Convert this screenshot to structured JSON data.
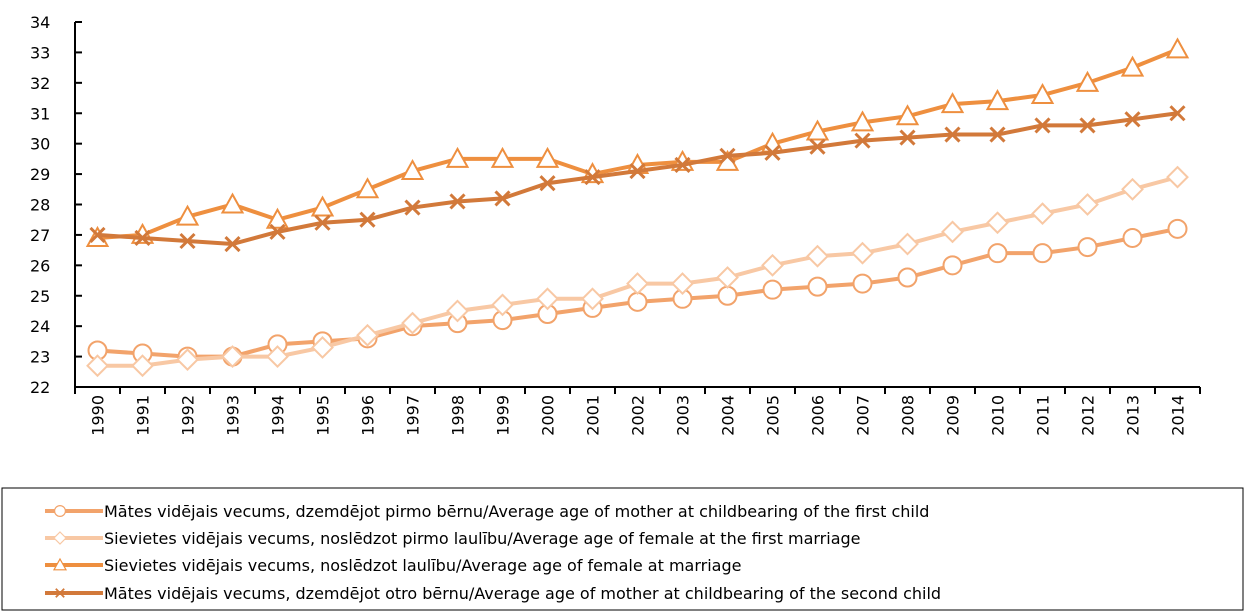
{
  "chart_data": {
    "type": "line",
    "categories": [
      "1990",
      "1991",
      "1992",
      "1993",
      "1994",
      "1995",
      "1996",
      "1997",
      "1998",
      "1999",
      "2000",
      "2001",
      "2002",
      "2003",
      "2004",
      "2005",
      "2006",
      "2007",
      "2008",
      "2009",
      "2010",
      "2011",
      "2012",
      "2013",
      "2014"
    ],
    "ylim": [
      22,
      34
    ],
    "yticks": [
      22,
      23,
      24,
      25,
      26,
      27,
      28,
      29,
      30,
      31,
      32,
      33,
      34
    ],
    "series": [
      {
        "name": "Mātes vidējais vecums, dzemdējot pirmo bērnu/Average age of mother at childbearing of the first child",
        "color": "#f2a36b",
        "marker": "circle",
        "values": [
          23.2,
          23.1,
          23.0,
          23.0,
          23.4,
          23.5,
          23.6,
          24.0,
          24.1,
          24.2,
          24.4,
          24.6,
          24.8,
          24.9,
          25.0,
          25.2,
          25.3,
          25.4,
          25.6,
          26.0,
          26.4,
          26.4,
          26.6,
          26.9,
          27.2
        ]
      },
      {
        "name": "Sievietes vidējais vecums, noslēdzot pirmo laulību/Average age of female at the first marriage",
        "color": "#f8c8a4",
        "marker": "diamond",
        "values": [
          22.7,
          22.7,
          22.9,
          23.0,
          23.0,
          23.3,
          23.7,
          24.1,
          24.5,
          24.7,
          24.9,
          24.9,
          25.4,
          25.4,
          25.6,
          26.0,
          26.3,
          26.4,
          26.7,
          27.1,
          27.4,
          27.7,
          28.0,
          28.5,
          28.9
        ]
      },
      {
        "name": "Sievietes vidējais vecums, noslēdzot laulību/Average age of female at marriage",
        "color": "#ee8f3f",
        "marker": "triangle",
        "values": [
          26.9,
          27.0,
          27.6,
          28.0,
          27.5,
          27.9,
          28.5,
          29.1,
          29.5,
          29.5,
          29.5,
          29.0,
          29.3,
          29.4,
          29.4,
          30.0,
          30.4,
          30.7,
          30.9,
          31.3,
          31.4,
          31.6,
          32.0,
          32.5,
          33.1
        ]
      },
      {
        "name": "Mātes vidējais vecums, dzemdējot otro bērnu/Average age of mother at childbearing of the second child",
        "color": "#d2793a",
        "marker": "x",
        "values": [
          27.0,
          26.9,
          26.8,
          26.7,
          27.1,
          27.4,
          27.5,
          27.9,
          28.1,
          28.2,
          28.7,
          28.9,
          29.1,
          29.3,
          29.6,
          29.7,
          29.9,
          30.1,
          30.2,
          30.3,
          30.3,
          30.6,
          30.6,
          30.8,
          31.0
        ]
      }
    ]
  }
}
